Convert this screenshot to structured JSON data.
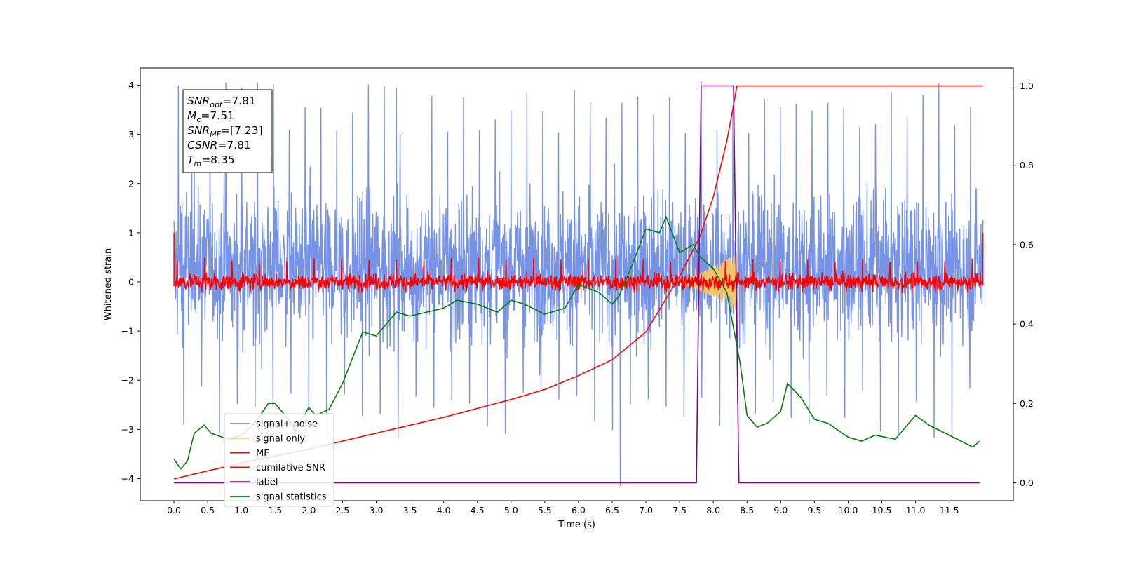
{
  "chart_data": {
    "type": "line",
    "xlabel": "Time (s)",
    "ylabel": "Whitened strain",
    "xlim": [
      -0.5,
      12.45
    ],
    "ylim": [
      -4.45,
      4.35
    ],
    "y2lim": [
      -0.045,
      1.045
    ],
    "xticks": [
      "0.0",
      "0.5",
      "1.0",
      "1.5",
      "2.0",
      "2.5",
      "3.0",
      "3.5",
      "4.0",
      "4.5",
      "5.0",
      "5.5",
      "6.0",
      "6.5",
      "7.0",
      "7.5",
      "8.0",
      "8.5",
      "9.0",
      "9.5",
      "10.0",
      "10.5",
      "11.0",
      "11.5"
    ],
    "yticks": [
      "4",
      "3",
      "2",
      "1",
      "0",
      "−1",
      "−2",
      "−3",
      "−4"
    ],
    "y2ticks": [
      "1.0",
      "0.8",
      "0.6",
      "0.4",
      "0.2",
      "0.0"
    ],
    "grid": false,
    "legend_position": "lower left",
    "legend": [
      "signal+ noise",
      "signal only",
      "MF",
      "cumilative SNR",
      "label",
      "signal statistics"
    ],
    "colors": {
      "noise": "#7793e8",
      "signal": "#f5c36b",
      "mf": "#ff0000",
      "cumsnr": "#ff0000",
      "label": "#800080",
      "stats": "#008000"
    },
    "series": [
      {
        "name": "signal+ noise",
        "axis": "left",
        "description_values": {
          "t_start": 0.0,
          "t_end": 12.0,
          "center": 0.3,
          "envelope_upper": 2.4,
          "envelope_lower": -1.9,
          "peak_max": 4.0,
          "peak_min": -4.15
        }
      },
      {
        "name": "signal only",
        "axis": "left",
        "chirp_start": 7.3,
        "chirp_end": 8.35,
        "max_amplitude": 0.6
      },
      {
        "name": "MF",
        "axis": "left",
        "center": 0.0,
        "typical_amplitude": 0.22,
        "spike_max": 0.5
      },
      {
        "name": "cumilative SNR",
        "axis": "right",
        "points": [
          [
            0.0,
            0.01
          ],
          [
            1.0,
            0.05
          ],
          [
            2.0,
            0.085
          ],
          [
            3.0,
            0.125
          ],
          [
            4.0,
            0.165
          ],
          [
            5.0,
            0.21
          ],
          [
            5.5,
            0.235
          ],
          [
            6.0,
            0.27
          ],
          [
            6.5,
            0.31
          ],
          [
            7.0,
            0.38
          ],
          [
            7.5,
            0.52
          ],
          [
            7.8,
            0.62
          ],
          [
            8.0,
            0.72
          ],
          [
            8.2,
            0.86
          ],
          [
            8.3,
            0.95
          ],
          [
            8.35,
            1.0
          ],
          [
            12.0,
            1.0
          ]
        ]
      },
      {
        "name": "label",
        "axis": "right",
        "points": [
          [
            0.0,
            0.0
          ],
          [
            7.75,
            0.0
          ],
          [
            7.82,
            1.0
          ],
          [
            8.3,
            1.0
          ],
          [
            8.38,
            0.0
          ],
          [
            11.95,
            0.0
          ]
        ]
      },
      {
        "name": "signal statistics",
        "axis": "right",
        "points": [
          [
            0.0,
            0.06
          ],
          [
            0.1,
            0.035
          ],
          [
            0.2,
            0.055
          ],
          [
            0.3,
            0.125
          ],
          [
            0.45,
            0.145
          ],
          [
            0.55,
            0.125
          ],
          [
            0.8,
            0.11
          ],
          [
            1.0,
            0.12
          ],
          [
            1.2,
            0.15
          ],
          [
            1.4,
            0.2
          ],
          [
            1.5,
            0.2
          ],
          [
            1.7,
            0.16
          ],
          [
            1.8,
            0.13
          ],
          [
            2.0,
            0.19
          ],
          [
            2.1,
            0.17
          ],
          [
            2.3,
            0.185
          ],
          [
            2.5,
            0.25
          ],
          [
            2.8,
            0.38
          ],
          [
            3.0,
            0.37
          ],
          [
            3.3,
            0.43
          ],
          [
            3.5,
            0.42
          ],
          [
            4.0,
            0.44
          ],
          [
            4.2,
            0.46
          ],
          [
            4.5,
            0.45
          ],
          [
            4.8,
            0.43
          ],
          [
            5.0,
            0.46
          ],
          [
            5.2,
            0.45
          ],
          [
            5.5,
            0.425
          ],
          [
            5.8,
            0.44
          ],
          [
            6.0,
            0.5
          ],
          [
            6.3,
            0.48
          ],
          [
            6.5,
            0.45
          ],
          [
            6.6,
            0.47
          ],
          [
            6.8,
            0.55
          ],
          [
            7.0,
            0.64
          ],
          [
            7.2,
            0.63
          ],
          [
            7.3,
            0.67
          ],
          [
            7.5,
            0.58
          ],
          [
            7.7,
            0.6
          ],
          [
            7.8,
            0.57
          ],
          [
            8.0,
            0.54
          ],
          [
            8.2,
            0.48
          ],
          [
            8.4,
            0.3
          ],
          [
            8.5,
            0.17
          ],
          [
            8.65,
            0.14
          ],
          [
            8.8,
            0.15
          ],
          [
            9.0,
            0.18
          ],
          [
            9.1,
            0.25
          ],
          [
            9.3,
            0.215
          ],
          [
            9.5,
            0.16
          ],
          [
            9.7,
            0.15
          ],
          [
            10.0,
            0.115
          ],
          [
            10.2,
            0.105
          ],
          [
            10.4,
            0.12
          ],
          [
            10.7,
            0.11
          ],
          [
            10.9,
            0.15
          ],
          [
            11.0,
            0.17
          ],
          [
            11.2,
            0.145
          ],
          [
            11.5,
            0.12
          ],
          [
            11.85,
            0.09
          ],
          [
            11.95,
            0.105
          ]
        ]
      }
    ],
    "stats_box": [
      {
        "sym": "SNR",
        "sub": "opt",
        "value": "=7.81"
      },
      {
        "sym": "M",
        "sub": "c",
        "value": "=7.51"
      },
      {
        "sym": "SNR",
        "sub": "MF",
        "value": "=[7.23]"
      },
      {
        "sym": "CSNR",
        "sub": "",
        "value": "=7.81"
      },
      {
        "sym": "T",
        "sub": "m",
        "value": "=8.35"
      }
    ]
  }
}
